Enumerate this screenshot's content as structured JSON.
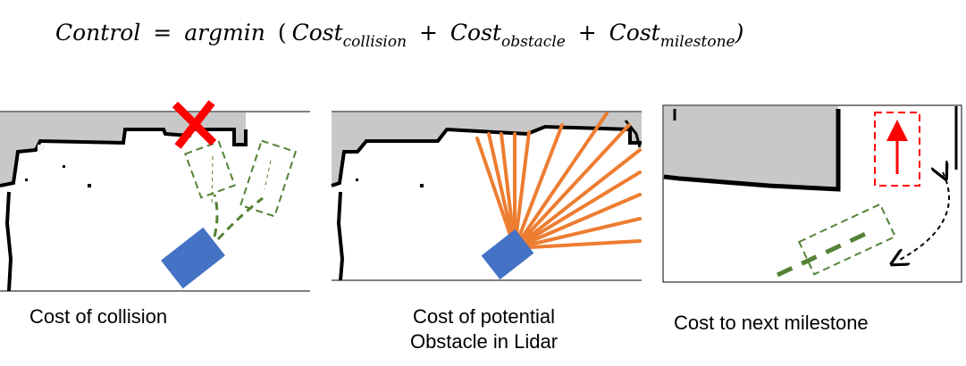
{
  "formula": {
    "lhs": "Control",
    "equals": "=",
    "func": "argmin",
    "open": "(",
    "term1": {
      "base": "Cost",
      "sub": "collision"
    },
    "plus1": "+",
    "term2": {
      "base": "Cost",
      "sub": "obstacle"
    },
    "plus2": "+",
    "term3": {
      "base": "Cost",
      "sub": "milestone"
    },
    "close": ")"
  },
  "panels": [
    {
      "caption": "Cost of collision"
    },
    {
      "caption_line1": "Cost of potential",
      "caption_line2": "Obstacle in Lidar"
    },
    {
      "caption": "Cost to next milestone"
    }
  ],
  "colors": {
    "robot": "#4472c4",
    "candidate_path": "#548235",
    "lidar_ray": "#ed7d31",
    "collision_mark": "#ff0000",
    "milestone": "#ff0000",
    "map_occupied": "#c8c8c8",
    "map_wall": "#000000"
  }
}
